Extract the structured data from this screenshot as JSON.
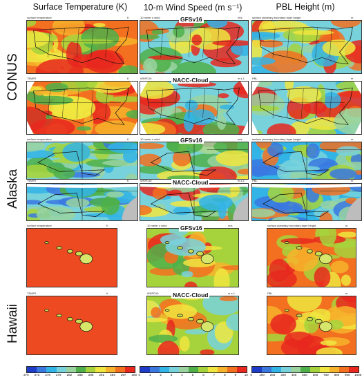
{
  "columns": [
    {
      "title": "Surface Temperature (K)"
    },
    {
      "title": "10-m Wind Speed (m s⁻¹)"
    },
    {
      "title": "PBL Height (m)"
    }
  ],
  "regions": [
    "CONUS",
    "Alaska",
    "Hawaii"
  ],
  "models": [
    "GFSv16",
    "NACC-Cloud"
  ],
  "panel_titles": {
    "gfs": [
      "surface temperature",
      "10 meter u wind",
      "surface planetary boundary layer height"
    ],
    "nacc": [
      "TEMP2",
      "WSPD10",
      "PBL"
    ]
  },
  "units": {
    "gfs": [
      "K",
      "m/s",
      "m"
    ],
    "nacc": [
      "K",
      "m s-1",
      "m"
    ]
  },
  "colorbars": [
    {
      "ticks": [
        "270",
        "273",
        "276",
        "279",
        "282",
        "285",
        "288",
        "291",
        "294",
        "297",
        "300"
      ]
    },
    {
      "ticks": [
        "0",
        "1",
        "2",
        "3",
        "4",
        "5",
        "6",
        "7",
        "8",
        "9",
        "10"
      ]
    },
    {
      "ticks": [
        "0",
        "100",
        "200",
        "300",
        "400",
        "500",
        "600",
        "700",
        "800",
        "900",
        "1000"
      ]
    }
  ],
  "palette": [
    "#1e3cc8",
    "#3a78e0",
    "#32b4e6",
    "#78d2dc",
    "#9ad3a0",
    "#4fb04a",
    "#a6d33c",
    "#f0e640",
    "#f7b32c",
    "#f27020",
    "#e8281e"
  ]
}
